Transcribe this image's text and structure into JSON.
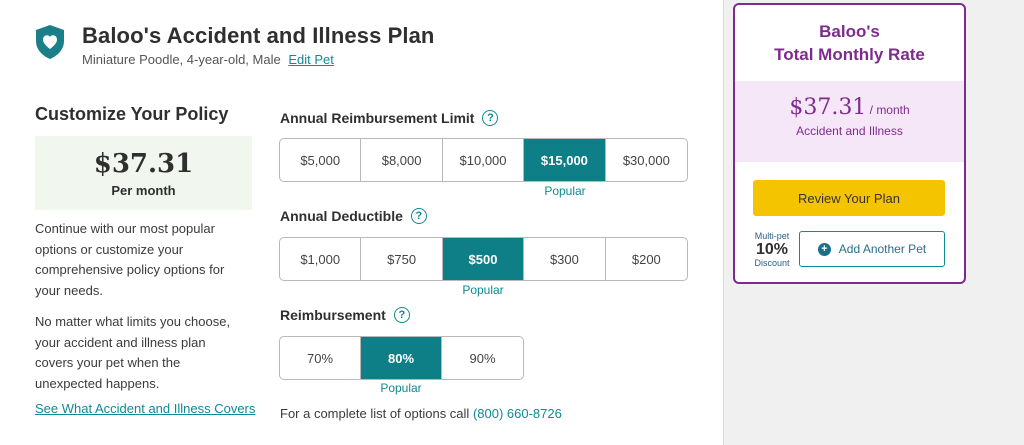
{
  "plan": {
    "title": "Baloo's Accident and Illness Plan",
    "pet_details": "Miniature Poodle, 4-year-old, Male",
    "edit_label": "Edit Pet",
    "icon": "shield-heart-icon",
    "brand_color": "#1a7f86"
  },
  "customize": {
    "title": "Customize Your Policy",
    "price": "$37.31",
    "per": "Per month",
    "description1": "Continue with our most popular options or customize your comprehensive policy options for your needs.",
    "description2": "No matter what limits you choose, your accident and illness plan covers your pet when the unexpected happens.",
    "covers_link": "See What Accident and Illness Covers"
  },
  "options": {
    "limit": {
      "label": "Annual Reimbursement Limit",
      "choices": [
        "$5,000",
        "$8,000",
        "$10,000",
        "$15,000",
        "$30,000"
      ],
      "selected": "$15,000",
      "popular": "Popular"
    },
    "deductible": {
      "label": "Annual Deductible",
      "choices": [
        "$1,000",
        "$750",
        "$500",
        "$300",
        "$200"
      ],
      "selected": "$500",
      "popular": "Popular"
    },
    "reimbursement": {
      "label": "Reimbursement",
      "choices": [
        "70%",
        "80%",
        "90%"
      ],
      "selected": "80%",
      "popular": "Popular"
    },
    "help_glyph": "?"
  },
  "call": {
    "text": "For a complete list of options call",
    "phone": "(800) 660-8726"
  },
  "summary": {
    "title_line1": "Baloo's",
    "title_line2": "Total Monthly Rate",
    "rate": "$37.31",
    "rate_unit": " / month",
    "coverage": "Accident and Illness",
    "review_label": "Review Your Plan",
    "multi_pet_top": "Multi-pet",
    "multi_pet_pct": "10%",
    "multi_pet_bottom": "Discount",
    "add_pet_label": "Add Another Pet",
    "accent_color": "#7d2b8c",
    "cta_color": "#f5c400"
  }
}
